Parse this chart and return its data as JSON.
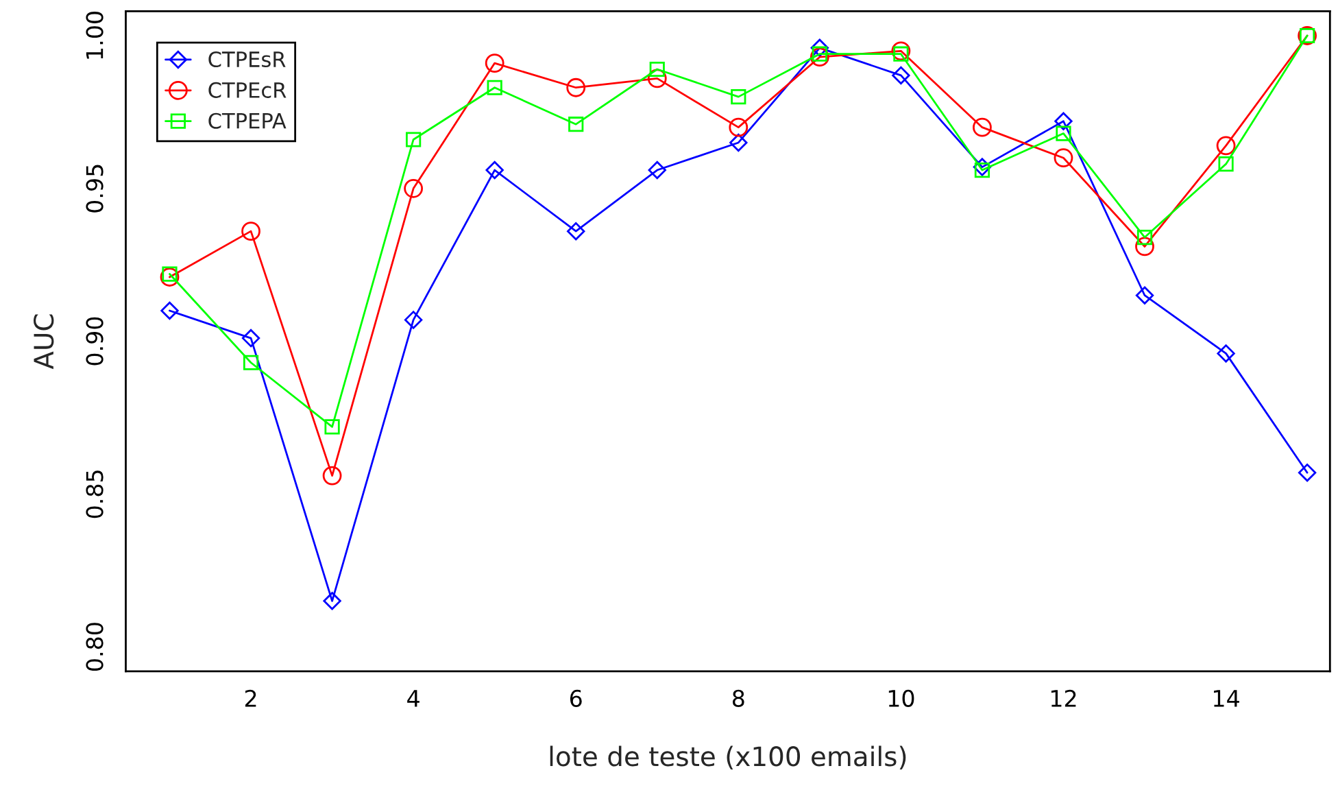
{
  "chart_data": {
    "type": "line",
    "xlabel": "lote de teste (x100 emails)",
    "ylabel": "AUC",
    "x": [
      1,
      2,
      3,
      4,
      5,
      6,
      7,
      8,
      9,
      10,
      11,
      12,
      13,
      14,
      15
    ],
    "xlim": [
      0.46,
      15.28
    ],
    "ylim": [
      0.792,
      1.008
    ],
    "xticks": [
      2,
      4,
      6,
      8,
      10,
      12,
      14
    ],
    "yticks": [
      {
        "value": 0.8,
        "label": "0.80"
      },
      {
        "value": 0.85,
        "label": "0.85"
      },
      {
        "value": 0.9,
        "label": "0.90"
      },
      {
        "value": 0.95,
        "label": "0.95"
      },
      {
        "value": 1.0,
        "label": "1.00"
      }
    ],
    "grid": false,
    "legend": "top left",
    "series": [
      {
        "name": "CTPEsR",
        "color": "#0000ff",
        "marker": "diamond",
        "values": [
          0.91,
          0.901,
          0.815,
          0.907,
          0.956,
          0.936,
          0.956,
          0.965,
          0.996,
          0.987,
          0.957,
          0.972,
          0.915,
          0.896,
          0.857
        ]
      },
      {
        "name": "CTPEcR",
        "color": "#ff0000",
        "marker": "circle",
        "values": [
          0.921,
          0.936,
          0.856,
          0.95,
          0.991,
          0.983,
          0.986,
          0.97,
          0.993,
          0.995,
          0.97,
          0.96,
          0.931,
          0.964,
          1.0
        ]
      },
      {
        "name": "CTPEPA",
        "color": "#00ff00",
        "marker": "square",
        "values": [
          0.922,
          0.893,
          0.872,
          0.966,
          0.983,
          0.971,
          0.989,
          0.98,
          0.994,
          0.994,
          0.956,
          0.968,
          0.934,
          0.958,
          1.0
        ]
      }
    ]
  }
}
